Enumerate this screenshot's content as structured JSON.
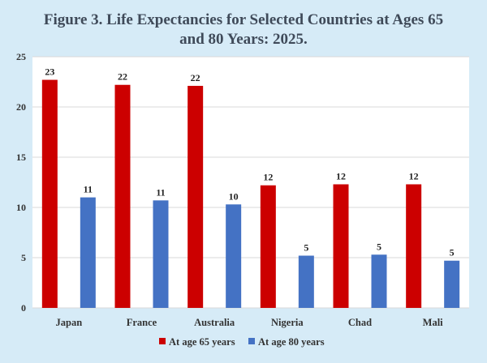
{
  "chart_data": {
    "type": "bar",
    "title_line1": "Figure 3. Life Expectancies for Selected Countries at Ages 65",
    "title_line2": "and 80 Years: 2025.",
    "categories": [
      "Japan",
      "France",
      "Australia",
      "Nigeria",
      "Chad",
      "Mali"
    ],
    "series": [
      {
        "name": "At age 65 years",
        "color": "#cc0000",
        "values": [
          22.7,
          22.2,
          22.1,
          12.2,
          12.3,
          12.3
        ],
        "labels": [
          "23",
          "22",
          "22",
          "12",
          "12",
          "12"
        ]
      },
      {
        "name": "At age 80 years",
        "color": "#4472c4",
        "values": [
          11.0,
          10.7,
          10.3,
          5.2,
          5.3,
          4.7
        ],
        "labels": [
          "11",
          "11",
          "10",
          "5",
          "5",
          "5"
        ]
      }
    ],
    "ylim": [
      0,
      25
    ],
    "yticks": [
      0,
      5,
      10,
      15,
      20,
      25
    ],
    "grid": true,
    "legend_position": "bottom",
    "xlabel": "",
    "ylabel": "",
    "colors": {
      "background": "#d6ebf7",
      "plot": "#ffffff",
      "grid": "#d9d9d9",
      "title": "#3f4a59"
    }
  }
}
